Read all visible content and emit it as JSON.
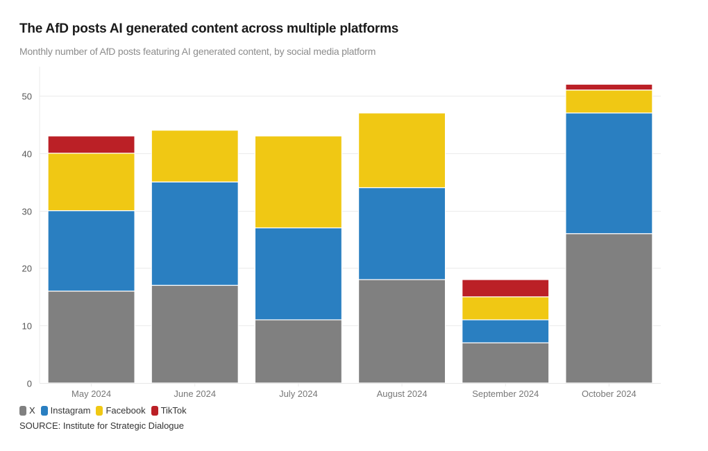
{
  "header": {
    "title": "The AfD posts AI generated content across multiple platforms",
    "subtitle": "Monthly number of AfD posts featuring AI generated content, by social media platform"
  },
  "footer": {
    "source": "SOURCE: Institute for Strategic Dialogue"
  },
  "colors": {
    "X": "#808080",
    "Instagram": "#2a7fc1",
    "Facebook": "#f0c814",
    "TikTok": "#bb2026",
    "grid": "#ebebeb",
    "separator": "#ffffff"
  },
  "chart_data": {
    "type": "bar",
    "stacked": true,
    "title": "The AfD posts AI generated content across multiple platforms",
    "subtitle": "Monthly number of AfD posts featuring AI generated content, by social media platform",
    "xlabel": "",
    "ylabel": "",
    "categories": [
      "May 2024",
      "June 2024",
      "July 2024",
      "August 2024",
      "September 2024",
      "October 2024"
    ],
    "series": [
      {
        "name": "X",
        "values": [
          16,
          17,
          11,
          18,
          7,
          26
        ]
      },
      {
        "name": "Instagram",
        "values": [
          14,
          18,
          16,
          16,
          4,
          21
        ]
      },
      {
        "name": "Facebook",
        "values": [
          10,
          9,
          16,
          13,
          4,
          4
        ]
      },
      {
        "name": "TikTok",
        "values": [
          3,
          0,
          0,
          0,
          3,
          1
        ]
      }
    ],
    "totals": [
      43,
      44,
      43,
      47,
      18,
      52
    ],
    "ylim": [
      0,
      55
    ],
    "yticks": [
      0,
      10,
      20,
      30,
      40,
      50
    ],
    "grid": true,
    "legend": [
      "X",
      "Instagram",
      "Facebook",
      "TikTok"
    ],
    "legend_position": "bottom-left",
    "source": "SOURCE: Institute for Strategic Dialogue"
  }
}
